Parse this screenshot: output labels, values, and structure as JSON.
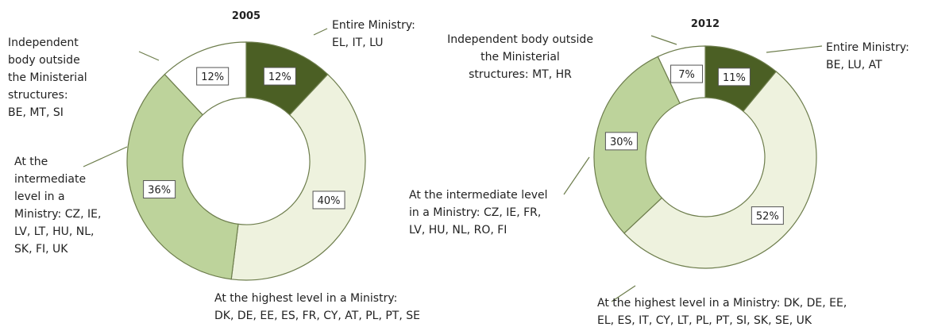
{
  "chart_data": [
    {
      "type": "donut",
      "title": "2005",
      "categories": [
        "Entire Ministry:\nEL, IT, LU",
        "At the highest level in a Ministry:\nDK, DE, EE, ES, FR, CY, AT, PL, PT, SE",
        "At the\nintermediate\nlevel in a\nMinistry: CZ, IE,\nLV, LT, HU, NL,\nSK, FI, UK",
        "Independent\nbody outside\nthe Ministerial\nstructures:\nBE, MT, SI"
      ],
      "values": [
        12,
        40,
        36,
        12
      ],
      "value_labels": [
        "12%",
        "40%",
        "36%",
        "12%"
      ],
      "colors": [
        "#4b5f24",
        "#eef2de",
        "#bdd39b",
        "#ffffff"
      ]
    },
    {
      "type": "donut",
      "title": "2012",
      "categories": [
        "Entire Ministry:\nBE, LU, AT",
        "At the highest level in a Ministry: DK, DE, EE,\nEL, ES, IT, CY, LT, PL, PT, SI, SK, SE, UK",
        "At the intermediate level\nin a Ministry: CZ, IE, FR,\nLV, HU, NL, RO, FI",
        "Independent body outside\nthe Ministerial\nstructures: MT, HR"
      ],
      "values": [
        11,
        52,
        30,
        7
      ],
      "value_labels": [
        "11%",
        "52%",
        "30%",
        "7%"
      ],
      "colors": [
        "#4b5f24",
        "#eef2de",
        "#bdd39b",
        "#ffffff"
      ]
    }
  ]
}
